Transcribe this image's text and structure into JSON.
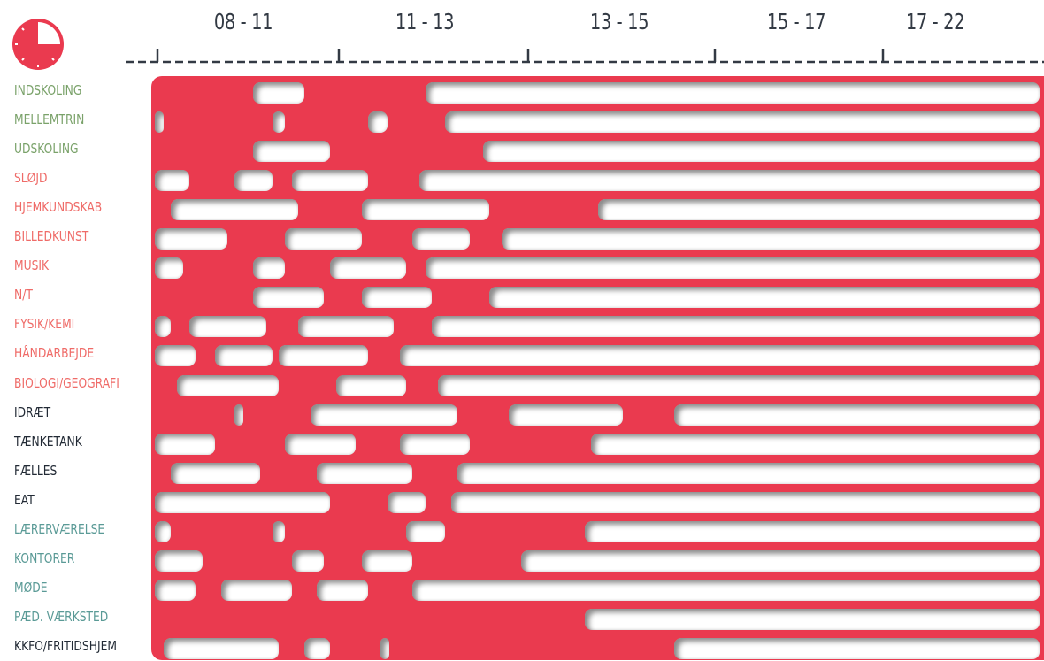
{
  "time_slots": [
    "08 - 11",
    "11 - 13",
    "13 - 15",
    "15 - 17",
    "17 - 22"
  ],
  "colors": {
    "accent": "#ea3a4f",
    "group_green": "#7aa26a",
    "group_red": "#ef6b68",
    "group_dark": "#222a35",
    "group_teal": "#5a9a96"
  },
  "chart_data": {
    "type": "gantt",
    "x_unit": "hours",
    "x_domain": [
      8,
      22
    ],
    "categories": [
      {
        "label": "INDSKOLING",
        "group": "green"
      },
      {
        "label": "MELLEMTRIN",
        "group": "green"
      },
      {
        "label": "UDSKOLING",
        "group": "green"
      },
      {
        "label": "SLØJD",
        "group": "red"
      },
      {
        "label": "HJEMKUNDSKAB",
        "group": "red"
      },
      {
        "label": "BILLEDKUNST",
        "group": "red"
      },
      {
        "label": "MUSIK",
        "group": "red"
      },
      {
        "label": "N/T",
        "group": "red"
      },
      {
        "label": "FYSIK/KEMI",
        "group": "red"
      },
      {
        "label": "HÅNDARBEJDE",
        "group": "red"
      },
      {
        "label": "BIOLOGI/GEOGRAFI",
        "group": "red"
      },
      {
        "label": "IDRÆT",
        "group": "dark"
      },
      {
        "label": "TÆNKETANK",
        "group": "dark"
      },
      {
        "label": "FÆLLES",
        "group": "dark"
      },
      {
        "label": "EAT",
        "group": "dark"
      },
      {
        "label": "LÆRERVÆRELSE",
        "group": "teal"
      },
      {
        "label": "KONTORER",
        "group": "teal"
      },
      {
        "label": "MØDE",
        "group": "teal"
      },
      {
        "label": "PÆD. VÆRKSTED",
        "group": "teal"
      },
      {
        "label": "KKFO/FRITIDSHJEM",
        "group": "dark"
      }
    ],
    "free_intervals": [
      [
        [
          9.6,
          10.4
        ],
        [
          12.3,
          22
        ]
      ],
      [
        [
          8.05,
          8.2
        ],
        [
          9.9,
          10.1
        ],
        [
          11.4,
          11.7
        ],
        [
          12.6,
          22
        ]
      ],
      [
        [
          9.6,
          10.8
        ],
        [
          13.2,
          22
        ]
      ],
      [
        [
          8.05,
          8.6
        ],
        [
          9.3,
          9.9
        ],
        [
          10.2,
          11.4
        ],
        [
          12.2,
          22
        ]
      ],
      [
        [
          8.3,
          10.3
        ],
        [
          11.3,
          13.3
        ],
        [
          15.0,
          22
        ]
      ],
      [
        [
          8.05,
          9.2
        ],
        [
          10.1,
          11.3
        ],
        [
          12.1,
          13.0
        ],
        [
          13.5,
          22
        ]
      ],
      [
        [
          8.05,
          8.5
        ],
        [
          9.6,
          10.1
        ],
        [
          10.8,
          12.0
        ],
        [
          12.3,
          22
        ]
      ],
      [
        [
          9.6,
          10.7
        ],
        [
          11.3,
          12.4
        ],
        [
          13.3,
          22
        ]
      ],
      [
        [
          8.05,
          8.3
        ],
        [
          8.6,
          9.8
        ],
        [
          10.3,
          11.8
        ],
        [
          12.4,
          22
        ]
      ],
      [
        [
          8.05,
          8.7
        ],
        [
          9.0,
          9.9
        ],
        [
          10.0,
          11.4
        ],
        [
          11.9,
          22
        ]
      ],
      [
        [
          8.4,
          10.0
        ],
        [
          10.9,
          12.0
        ],
        [
          12.5,
          22
        ]
      ],
      [
        [
          9.3,
          9.4
        ],
        [
          10.5,
          12.8
        ],
        [
          13.6,
          15.4
        ],
        [
          16.2,
          22
        ]
      ],
      [
        [
          8.05,
          9.0
        ],
        [
          10.1,
          11.2
        ],
        [
          11.9,
          13.0
        ],
        [
          14.9,
          22
        ]
      ],
      [
        [
          8.3,
          9.7
        ],
        [
          10.6,
          12.1
        ],
        [
          12.8,
          22
        ]
      ],
      [
        [
          8.05,
          10.8
        ],
        [
          11.7,
          12.3
        ],
        [
          12.7,
          22
        ]
      ],
      [
        [
          8.05,
          8.3
        ],
        [
          9.9,
          10.1
        ],
        [
          12.0,
          12.6
        ],
        [
          14.8,
          22
        ]
      ],
      [
        [
          8.05,
          8.8
        ],
        [
          10.2,
          10.7
        ],
        [
          11.3,
          12.1
        ],
        [
          13.8,
          22
        ]
      ],
      [
        [
          8.05,
          8.7
        ],
        [
          9.1,
          10.2
        ],
        [
          10.6,
          11.4
        ],
        [
          12.1,
          22
        ]
      ],
      [
        [
          14.8,
          22
        ]
      ],
      [
        [
          8.2,
          10.0
        ],
        [
          10.4,
          10.8
        ],
        [
          11.6,
          11.7
        ],
        [
          16.2,
          22
        ]
      ]
    ]
  }
}
